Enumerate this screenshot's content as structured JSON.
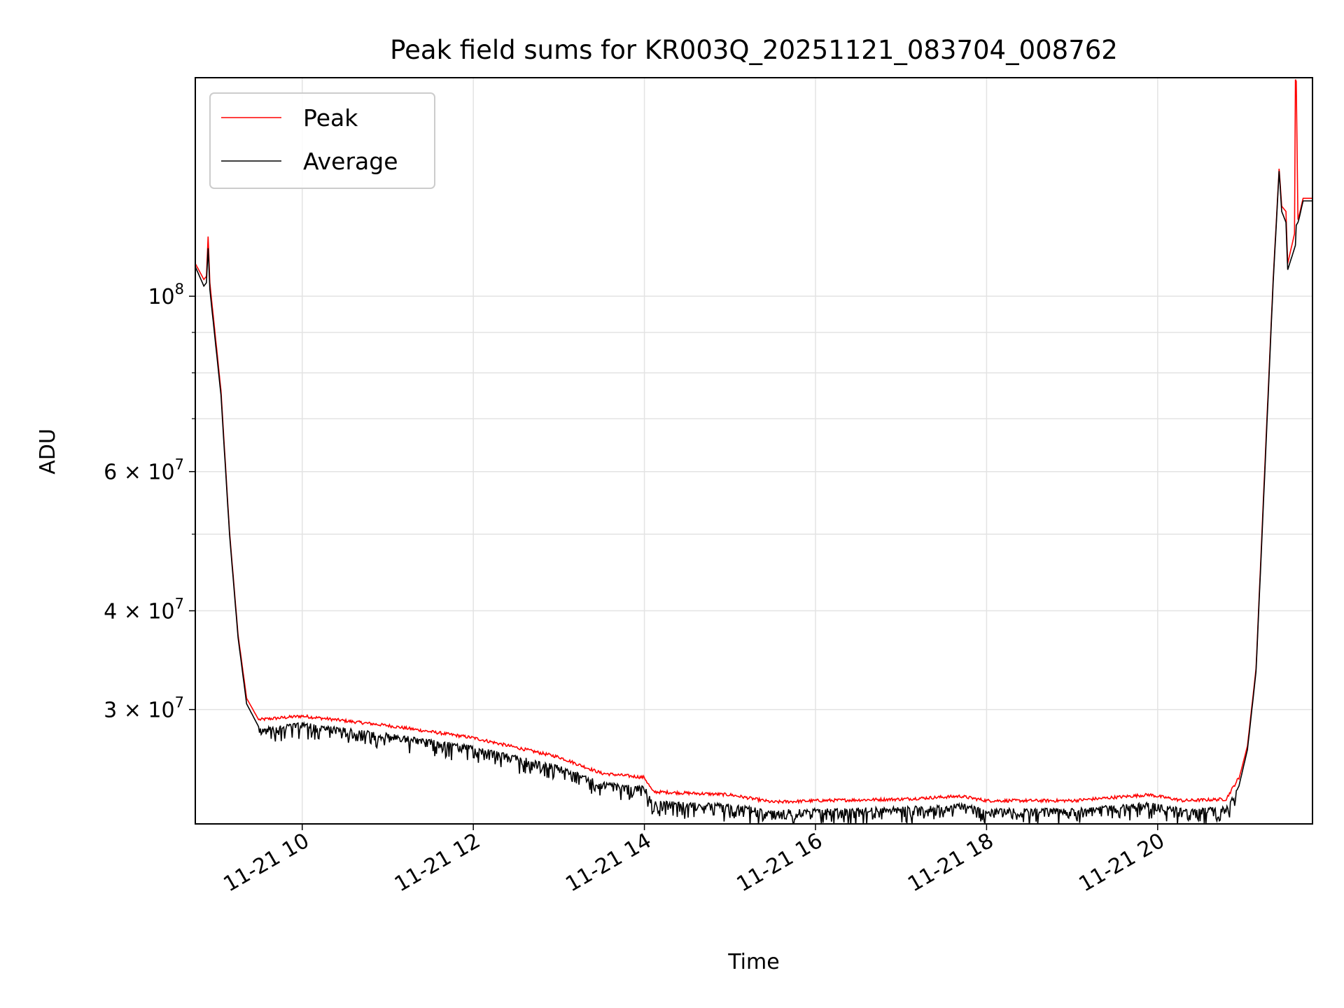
{
  "chart_data": {
    "type": "line",
    "title": "Peak field sums for KR003Q_20251121_083704_008762",
    "xlabel": "Time",
    "ylabel": "ADU",
    "x_unit": "hours on 2025-11-21",
    "xlim": [
      8.75,
      21.81
    ],
    "ylim": [
      21500000,
      189000000
    ],
    "yscale": "log",
    "grid": true,
    "legend": {
      "placement": "top-left",
      "entries": [
        "Peak",
        "Average"
      ]
    },
    "x_ticks": [
      {
        "value": 10,
        "label": "11-21 10"
      },
      {
        "value": 12,
        "label": "11-21 12"
      },
      {
        "value": 14,
        "label": "11-21 14"
      },
      {
        "value": 16,
        "label": "11-21 16"
      },
      {
        "value": 18,
        "label": "11-21 18"
      },
      {
        "value": 20,
        "label": "11-21 20"
      }
    ],
    "y_ticks": [
      {
        "value": 100000000,
        "base": "10",
        "exp": "8",
        "label": "10^8"
      },
      {
        "value": 60000000,
        "mant": "6",
        "base": "10",
        "exp": "7",
        "label": "6×10^7"
      },
      {
        "value": 40000000,
        "mant": "4",
        "base": "10",
        "exp": "7",
        "label": "4×10^7"
      },
      {
        "value": 30000000,
        "mant": "3",
        "base": "10",
        "exp": "7",
        "label": "3×10^7"
      }
    ],
    "y_minor": [
      50000000,
      70000000,
      80000000,
      90000000
    ],
    "series": [
      {
        "name": "Peak",
        "color": "#ff0000",
        "x": [
          8.75,
          8.85,
          8.88,
          8.9,
          8.92,
          9.05,
          9.15,
          9.25,
          9.35,
          9.5,
          10,
          11,
          12,
          13,
          13.5,
          14,
          14.1,
          15,
          15.5,
          16,
          17,
          17.7,
          18,
          19,
          19.9,
          20.3,
          20.8,
          20.95,
          21.05,
          21.15,
          21.25,
          21.35,
          21.42,
          21.45,
          21.5,
          21.52,
          21.6,
          21.61,
          21.62,
          21.64,
          21.65,
          21.7,
          21.81
        ],
        "y": [
          110000000,
          105000000,
          106000000,
          119000000,
          104000000,
          76000000,
          50400000,
          37300000,
          31000000,
          29000000,
          29300000,
          28500000,
          27500000,
          26000000,
          24800000,
          24500000,
          23500000,
          23300000,
          22800000,
          22900000,
          23000000,
          23200000,
          22900000,
          22900000,
          23300000,
          22900000,
          23000000,
          24500000,
          27000000,
          33800000,
          60000000,
          105000000,
          145000000,
          130000000,
          128000000,
          110000000,
          120000000,
          188000000,
          187000000,
          125000000,
          126000000,
          133000000,
          133000000
        ]
      },
      {
        "name": "Average",
        "color": "#000000",
        "x": [
          8.75,
          8.85,
          8.88,
          8.9,
          8.92,
          9.05,
          9.15,
          9.25,
          9.35,
          9.5,
          10,
          11,
          12,
          13,
          13.5,
          14,
          14.1,
          15,
          15.5,
          16,
          17,
          17.7,
          18,
          19,
          19.9,
          20.3,
          20.8,
          20.95,
          21.05,
          21.15,
          21.25,
          21.35,
          21.42,
          21.45,
          21.5,
          21.52,
          21.6,
          21.61,
          21.62,
          21.64,
          21.65,
          21.7,
          21.81
        ],
        "y": [
          109000000,
          103000000,
          104000000,
          115000000,
          102000000,
          75000000,
          50000000,
          37000000,
          30500000,
          28400000,
          28900000,
          28000000,
          27000000,
          25500000,
          24300000,
          24000000,
          23000000,
          22800000,
          22400000,
          22500000,
          22600000,
          22800000,
          22500000,
          22500000,
          22900000,
          22500000,
          22600000,
          24000000,
          26700000,
          33500000,
          59000000,
          104000000,
          144000000,
          128000000,
          124000000,
          108000000,
          115000000,
          116000000,
          123000000,
          124000000,
          125000000,
          132000000,
          132000000
        ]
      }
    ]
  }
}
